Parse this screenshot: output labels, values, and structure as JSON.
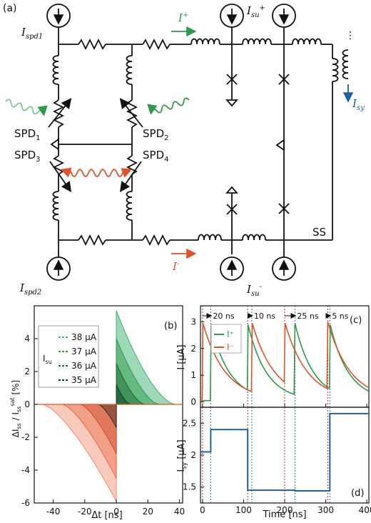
{
  "panel_labels": {
    "a": "(a)",
    "b": "(b)",
    "c": "(c)",
    "d": "(d)"
  },
  "circuit": {
    "current_labels": {
      "ispd1": "I",
      "ispd1_sub": "spd1",
      "ispd2": "I",
      "ispd2_sub": "spd2",
      "isu_plus": "I",
      "isu_plus_sub": "su",
      "isu_plus_sup": "+",
      "isu_minus": "I",
      "isu_minus_sub": "su",
      "isu_minus_sup": "-",
      "isy": "I",
      "isy_sub": "sy",
      "iplus": "I",
      "iplus_sup": "+",
      "iminus": "I",
      "iminus_sup": "-"
    },
    "spd": [
      {
        "text": "SPD",
        "sub": "1"
      },
      {
        "text": "SPD",
        "sub": "2"
      },
      {
        "text": "SPD",
        "sub": "3"
      },
      {
        "text": "SPD",
        "sub": "4"
      }
    ],
    "ss_label": "SS",
    "ellipsis": "⋮",
    "colors": {
      "plus": "#2e9a4a",
      "minus": "#e0532a",
      "isy": "#2060a0"
    }
  },
  "chart_data": [
    {
      "type": "area",
      "panel": "b",
      "xlabel": "Δt [ns]",
      "ylabel": "ΔI_ss / I_ss^sat [%]",
      "xlim": [
        -52,
        42
      ],
      "ylim": [
        -6,
        6
      ],
      "xticks": [
        "-40",
        "-20",
        "0",
        "20",
        "40"
      ],
      "yticks": [
        "4",
        "2",
        "0",
        "-2",
        "-4",
        "-6"
      ],
      "legend_title": "I_su",
      "legend_position": "top-left",
      "series": [
        {
          "name": "38 µA",
          "color": "#3cb371",
          "neg_color": "#f08a6a",
          "pos_peak": 5.7,
          "neg_peak": -5.9,
          "x_end": 37
        },
        {
          "name": "37 µA",
          "color": "#2e9a4a",
          "neg_color": "#e86a45",
          "pos_peak": 4.0,
          "neg_peak": -4.5,
          "x_end": 27
        },
        {
          "name": "36 µA",
          "color": "#1d6b35",
          "neg_color": "#d04a28",
          "pos_peak": 2.5,
          "neg_peak": -3.0,
          "x_end": 18
        },
        {
          "name": "35 µA",
          "color": "#123d22",
          "neg_color": "#3a2a22",
          "pos_peak": 1.2,
          "neg_peak": -1.4,
          "x_end": 9
        }
      ]
    },
    {
      "type": "line",
      "panel": "c",
      "xlabel": "",
      "ylabel": "I [µA]",
      "xlim": [
        -5,
        405
      ],
      "ylim": [
        -0.2,
        3.6
      ],
      "yticks": [
        "3",
        "2",
        "1",
        "0"
      ],
      "legend_position": "top-left",
      "annotations": [
        "20 ns",
        "10 ns",
        "25 ns",
        "5 ns"
      ],
      "series": [
        {
          "name": "I⁺",
          "color": "#2e9a4a",
          "events": [
            20,
            110,
            225,
            310
          ]
        },
        {
          "name": "I⁻",
          "color": "#e0532a",
          "events": [
            0,
            120,
            200,
            305
          ]
        }
      ],
      "dashed_x": [
        0,
        20,
        110,
        120,
        200,
        225,
        305,
        310
      ]
    },
    {
      "type": "line",
      "panel": "d",
      "xlabel": "Time [ns]",
      "ylabel": "I_sy [µA]",
      "xlim": [
        -5,
        405
      ],
      "ylim": [
        1.25,
        2.75
      ],
      "xticks": [
        "0",
        "100",
        "200",
        "300",
        "400"
      ],
      "yticks": [
        "2.5",
        "2",
        "1.5"
      ],
      "series": [
        {
          "name": "I_sy",
          "color": "#2060a0",
          "x": [
            -5,
            20,
            20,
            110,
            110,
            225,
            225,
            310,
            310,
            405
          ],
          "y": [
            2.05,
            2.05,
            2.4,
            2.4,
            1.45,
            1.45,
            1.44,
            1.44,
            2.65,
            2.65
          ]
        }
      ]
    }
  ]
}
